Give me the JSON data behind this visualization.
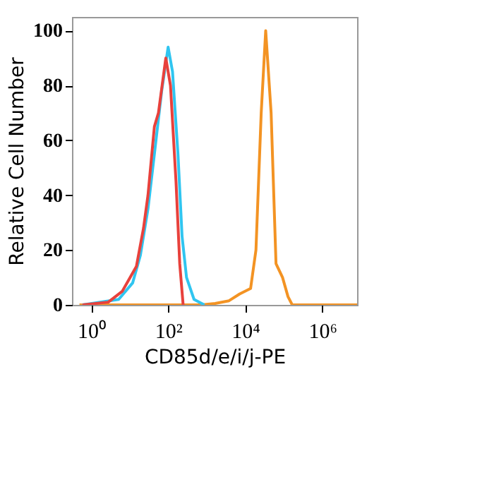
{
  "chart_data": {
    "type": "line",
    "xlabel": "CD85d/e/i/j-PE",
    "ylabel": "Relative Cell Number",
    "log": "x",
    "grid": false,
    "marker": "none",
    "line_style": "solid",
    "xlim": [
      0.32,
      8000000
    ],
    "xticks": [
      {
        "value": 1,
        "label": "10⁰"
      },
      {
        "value": 100,
        "label": "10²"
      },
      {
        "value": 10000,
        "label": "10⁴"
      },
      {
        "value": 1000000,
        "label": "10⁶"
      }
    ],
    "ylim": [
      0,
      105
    ],
    "yticks": [
      0,
      20,
      40,
      60,
      80,
      100
    ],
    "series": [
      {
        "color": "#f39323",
        "x": [
          0.5,
          107,
          720,
          1660,
          3800,
          7200,
          13800,
          19000,
          26000,
          34000,
          47000,
          63000,
          93000,
          129000,
          166000,
          8000000
        ],
        "values": [
          0,
          0,
          0,
          0.5,
          1.5,
          4,
          6,
          20,
          70,
          100,
          70,
          15,
          10,
          3,
          0,
          0
        ]
      },
      {
        "color": "#30c5f0",
        "x": [
          0.6,
          5.2,
          12,
          19,
          30,
          44,
          68,
          100,
          130,
          180,
          230,
          300,
          470,
          870
        ],
        "values": [
          0,
          2,
          8,
          18,
          35,
          55,
          78,
          94,
          85,
          55,
          25,
          10,
          2,
          0
        ]
      },
      {
        "color": "#e8413c",
        "x": [
          0.6,
          2.8,
          6.5,
          15,
          23,
          30,
          44,
          56,
          87,
          115,
          160,
          200,
          245
        ],
        "values": [
          0,
          1,
          5,
          14,
          28,
          40,
          65,
          70,
          90,
          80,
          45,
          15,
          0
        ]
      }
    ]
  }
}
